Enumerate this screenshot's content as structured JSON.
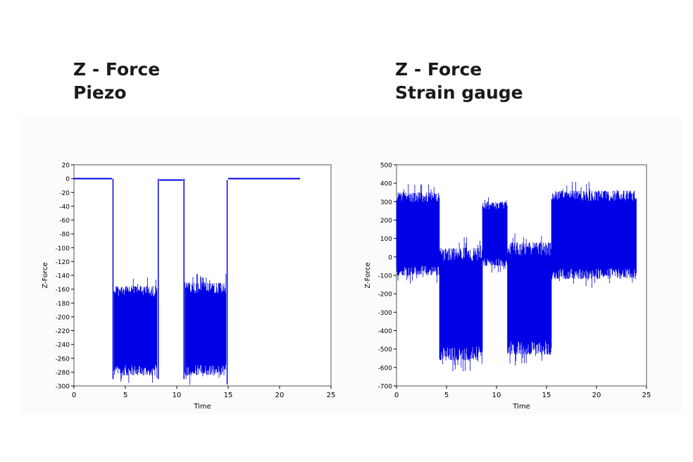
{
  "headings": {
    "left": {
      "line1": "Z - Force",
      "line2": "Piezo"
    },
    "right": {
      "line1": "Z - Force",
      "line2": "Strain gauge"
    }
  },
  "colors": {
    "series": "#0000e6",
    "axis": "#000000",
    "background": "#ffffff",
    "panel": "#fbfbfb"
  },
  "chart_data": [
    {
      "type": "line",
      "title": "",
      "xlabel": "Time",
      "ylabel": "Z-Force",
      "xlim": [
        0,
        25
      ],
      "ylim": [
        -300,
        20
      ],
      "xticks": [
        0,
        5,
        10,
        15,
        20,
        25
      ],
      "yticks": [
        20,
        0,
        -20,
        -40,
        -60,
        -80,
        -100,
        -120,
        -140,
        -160,
        -180,
        -200,
        -220,
        -240,
        -260,
        -280,
        -300
      ],
      "grid": false,
      "legend": "none",
      "series": [
        {
          "name": "Piezo",
          "segments": [
            {
              "x": [
                0,
                3.7
              ],
              "min": -1,
              "max": 1
            },
            {
              "x": [
                3.7,
                3.9
              ],
              "min": -290,
              "max": 0
            },
            {
              "x": [
                3.9,
                8.1
              ],
              "min": -285,
              "max": -155
            },
            {
              "x": [
                8.1,
                8.3
              ],
              "min": -290,
              "max": 0
            },
            {
              "x": [
                8.3,
                10.6
              ],
              "min": -3,
              "max": -1
            },
            {
              "x": [
                10.6,
                10.8
              ],
              "min": -290,
              "max": 0
            },
            {
              "x": [
                10.8,
                14.8
              ],
              "min": -285,
              "max": -150
            },
            {
              "x": [
                14.8,
                15.0
              ],
              "min": -298,
              "max": -2
            },
            {
              "x": [
                15.0,
                22
              ],
              "min": -1,
              "max": 1
            }
          ]
        }
      ]
    },
    {
      "type": "line",
      "title": "",
      "xlabel": "Time",
      "ylabel": "Z-Force",
      "xlim": [
        0,
        25
      ],
      "ylim": [
        -700,
        500
      ],
      "xticks": [
        0,
        5,
        10,
        15,
        20,
        25
      ],
      "yticks": [
        500,
        400,
        300,
        200,
        100,
        0,
        -100,
        -200,
        -300,
        -400,
        -500,
        -600,
        -700
      ],
      "grid": false,
      "legend": "none",
      "series": [
        {
          "name": "Strain gauge",
          "segments": [
            {
              "x": [
                0,
                4.3
              ],
              "min": -100,
              "max": 350
            },
            {
              "x": [
                4.3,
                8.6
              ],
              "min": -560,
              "max": 50
            },
            {
              "x": [
                8.6,
                11.1
              ],
              "min": -50,
              "max": 300
            },
            {
              "x": [
                11.1,
                15.5
              ],
              "min": -530,
              "max": 80
            },
            {
              "x": [
                15.5,
                24
              ],
              "min": -120,
              "max": 360
            }
          ]
        }
      ]
    }
  ]
}
